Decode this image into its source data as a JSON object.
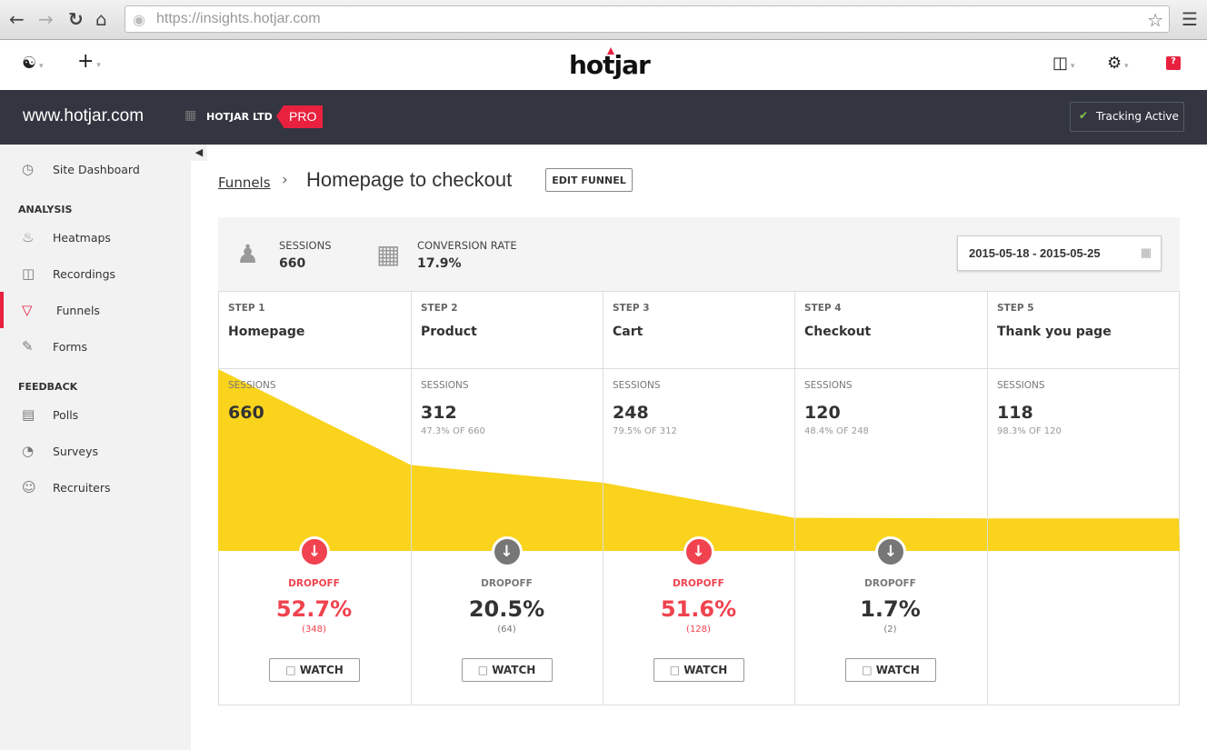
{
  "browser": {
    "url": "https://insights.hotjar.com"
  },
  "topbar": {
    "logo": "hotjar",
    "help": "?"
  },
  "sitebar": {
    "site": "www.hotjar.com",
    "org": "HOTJAR LTD",
    "plan": "PRO",
    "tracking": "Tracking Active"
  },
  "sidebar": {
    "dashboard": "Site Dashboard",
    "analysis": "ANALYSIS",
    "feedback": "FEEDBACK",
    "items": [
      {
        "label": "Heatmaps"
      },
      {
        "label": "Recordings"
      },
      {
        "label": "Funnels"
      },
      {
        "label": "Forms"
      },
      {
        "label": "Polls"
      },
      {
        "label": "Surveys"
      },
      {
        "label": "Recruiters"
      }
    ]
  },
  "breadcrumb": {
    "parent": "Funnels",
    "title": "Homepage to checkout",
    "edit": "EDIT FUNNEL"
  },
  "summary": {
    "sessions_label": "SESSIONS",
    "sessions": "660",
    "conv_label": "CONVERSION RATE",
    "conv": "17.9%",
    "date_range": "2015-05-18 - 2015-05-25"
  },
  "colors": {
    "accent": "#e8213f",
    "funnel": "#f9d31c",
    "dropoff_red": "#f0434f",
    "dropoff_gray": "#777777"
  },
  "sessions_label": "SESSIONS",
  "dropoff_label": "DROPOFF",
  "watch_label": "WATCH",
  "steps": [
    {
      "step": "STEP 1",
      "name": "Homepage",
      "sessions": 660,
      "sessions_text": "660",
      "pct": "",
      "dropoff": "52.7%",
      "dropoff_count": "(348)",
      "severe": true
    },
    {
      "step": "STEP 2",
      "name": "Product",
      "sessions": 312,
      "sessions_text": "312",
      "pct": "47.3% OF 660",
      "dropoff": "20.5%",
      "dropoff_count": "(64)",
      "severe": false
    },
    {
      "step": "STEP 3",
      "name": "Cart",
      "sessions": 248,
      "sessions_text": "248",
      "pct": "79.5% OF 312",
      "dropoff": "51.6%",
      "dropoff_count": "(128)",
      "severe": true
    },
    {
      "step": "STEP 4",
      "name": "Checkout",
      "sessions": 120,
      "sessions_text": "120",
      "pct": "48.4% OF 248",
      "dropoff": "1.7%",
      "dropoff_count": "(2)",
      "severe": false
    },
    {
      "step": "STEP 5",
      "name": "Thank you page",
      "sessions": 118,
      "sessions_text": "118",
      "pct": "98.3% OF 120"
    }
  ]
}
